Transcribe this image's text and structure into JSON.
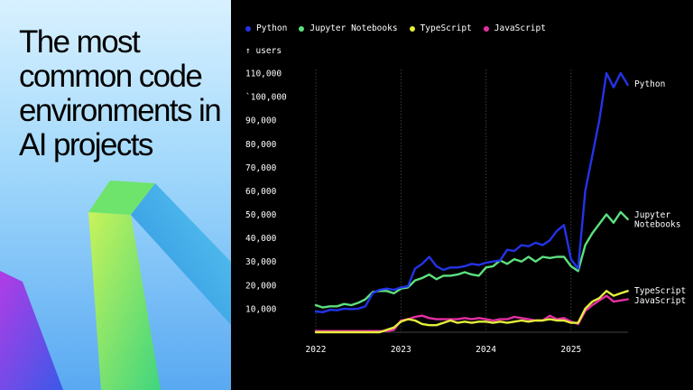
{
  "headline": "The most common code environments in AI projects",
  "users_label": "↑ users",
  "chart_data": {
    "type": "line",
    "title": "",
    "xlabel": "",
    "ylabel": "users",
    "ylim": [
      0,
      110000
    ],
    "yticks": [
      10000,
      20000,
      30000,
      40000,
      50000,
      60000,
      70000,
      80000,
      90000,
      100000,
      110000
    ],
    "ytick_labels": [
      "10,000",
      "20,000",
      "30,000",
      "40,000",
      "50,000",
      "60,000",
      "70,000",
      "80,000",
      "90,000",
      "`100,000",
      "110,000"
    ],
    "xlim": [
      2022.0,
      2025.67
    ],
    "xticks": [
      2022,
      2023,
      2024,
      2025
    ],
    "xtick_labels": [
      "2022",
      "2023",
      "2024",
      "2025"
    ],
    "legend_position": "top",
    "grid": "vertical",
    "x": [
      2022.0,
      2022.083,
      2022.167,
      2022.25,
      2022.333,
      2022.417,
      2022.5,
      2022.583,
      2022.667,
      2022.75,
      2022.833,
      2022.917,
      2023.0,
      2023.083,
      2023.167,
      2023.25,
      2023.333,
      2023.417,
      2023.5,
      2023.583,
      2023.667,
      2023.75,
      2023.833,
      2023.917,
      2024.0,
      2024.083,
      2024.167,
      2024.25,
      2024.333,
      2024.417,
      2024.5,
      2024.583,
      2024.667,
      2024.75,
      2024.833,
      2024.917,
      2025.0,
      2025.083,
      2025.167,
      2025.25,
      2025.333,
      2025.417,
      2025.5,
      2025.583,
      2025.667
    ],
    "series": [
      {
        "name": "Python",
        "color": "#2433e8",
        "values": [
          8800,
          8500,
          9500,
          9300,
          10000,
          9800,
          10000,
          11000,
          16500,
          18000,
          18500,
          18000,
          19000,
          19500,
          27000,
          29000,
          32000,
          28000,
          26500,
          27500,
          27500,
          28000,
          29000,
          28500,
          29500,
          30000,
          30500,
          35000,
          34500,
          37000,
          36500,
          38000,
          37000,
          39000,
          43000,
          45500,
          31000,
          27000,
          60000,
          75000,
          90000,
          110000,
          104000,
          110000,
          105000
        ]
      },
      {
        "name": "Jupyter Notebooks",
        "color": "#5de07e",
        "values": [
          11500,
          10500,
          11000,
          11000,
          12000,
          11500,
          12500,
          14000,
          17000,
          17500,
          17500,
          16500,
          18500,
          19000,
          22000,
          23000,
          24500,
          22500,
          24000,
          24000,
          24500,
          25500,
          24500,
          24000,
          27500,
          28000,
          30500,
          29000,
          31000,
          30000,
          32000,
          30000,
          32000,
          31500,
          32000,
          32000,
          28000,
          26000,
          37000,
          42000,
          46000,
          50000,
          46500,
          51000,
          48000
        ]
      },
      {
        "name": "TypeScript",
        "color": "#e4ef3b",
        "values": [
          0,
          0,
          0,
          0,
          0,
          0,
          0,
          0,
          0,
          0,
          1000,
          2000,
          4500,
          5500,
          5000,
          3500,
          3000,
          3000,
          4000,
          5000,
          4000,
          4500,
          4000,
          4500,
          4500,
          4000,
          4500,
          4000,
          4500,
          5000,
          4500,
          5000,
          5000,
          5500,
          5000,
          5000,
          4000,
          4000,
          10000,
          13000,
          14500,
          17500,
          15500,
          16500,
          17500
        ]
      },
      {
        "name": "JavaScript",
        "color": "#e62fa3",
        "values": [
          500,
          500,
          500,
          500,
          500,
          500,
          500,
          500,
          500,
          500,
          500,
          1000,
          5000,
          5500,
          6500,
          7000,
          6000,
          5500,
          5500,
          5500,
          5500,
          6000,
          5500,
          6000,
          5500,
          5000,
          5500,
          5500,
          6500,
          6000,
          5500,
          5000,
          5000,
          7000,
          5500,
          6000,
          4500,
          3500,
          9000,
          11500,
          13500,
          15500,
          13000,
          13500,
          14000
        ]
      }
    ],
    "end_labels": [
      {
        "series": 0,
        "lines": [
          "Python"
        ]
      },
      {
        "series": 1,
        "lines": [
          "Jupyter",
          "Notebooks"
        ]
      },
      {
        "series": 2,
        "lines": [
          "TypeScript"
        ]
      },
      {
        "series": 3,
        "lines": [
          "JavaScript"
        ]
      }
    ]
  },
  "colors": {
    "background": "#000000",
    "text": "#ffffff",
    "gridline": "#555555",
    "panel_gradient": [
      "#d8f1ff",
      "#59a9f2"
    ]
  }
}
